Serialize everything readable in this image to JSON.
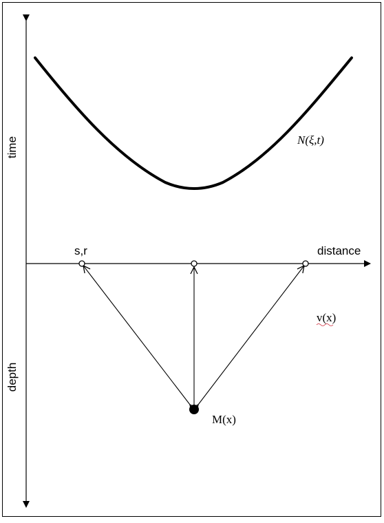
{
  "labels": {
    "time_axis": "time",
    "depth_axis": "depth",
    "distance_axis": "distance",
    "source_receiver": "s,r",
    "traveltime_curve": "N(ξ,t)",
    "velocity": "v(x)",
    "scatterer": "M(x)"
  },
  "colors": {
    "line": "#000000",
    "background": "#ffffff"
  }
}
